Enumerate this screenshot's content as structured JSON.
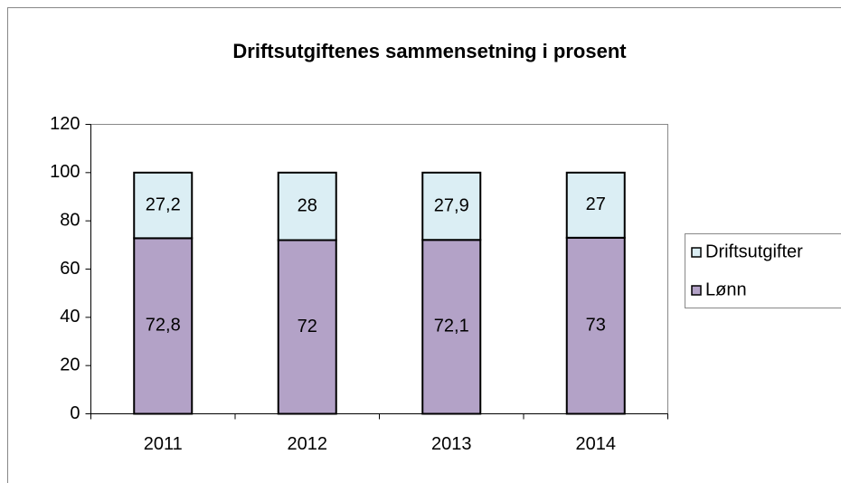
{
  "chart_data": {
    "type": "stacked_bar",
    "title": "Driftsutgiftenes sammensetning i prosent",
    "categories": [
      "2011",
      "2012",
      "2013",
      "2014"
    ],
    "series": [
      {
        "name": "Lønn",
        "color": "#b3a2c7",
        "values": [
          72.8,
          72,
          72.1,
          73
        ],
        "value_labels": [
          "72,8",
          "72",
          "72,1",
          "73"
        ]
      },
      {
        "name": "Driftsutgifter",
        "color": "#dbeef4",
        "values": [
          27.2,
          28,
          27.9,
          27
        ],
        "value_labels": [
          "27,2",
          "28",
          "27,9",
          "27"
        ]
      }
    ],
    "ylim": [
      0,
      120
    ],
    "yticks": [
      0,
      20,
      40,
      60,
      80,
      100,
      120
    ],
    "grid": false,
    "legend": "right"
  }
}
